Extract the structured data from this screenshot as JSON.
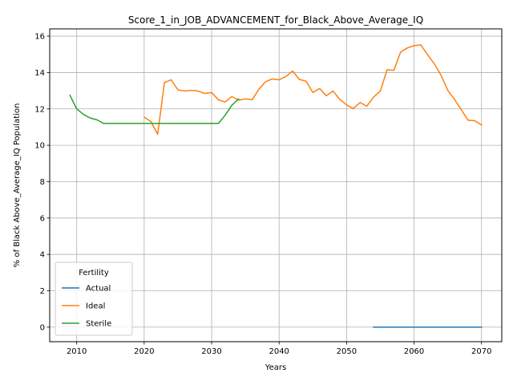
{
  "chart_data": {
    "type": "line",
    "title": "Score_1_in_JOB_ADVANCEMENT_for_Black_Above_Average_IQ",
    "xlabel": "Years",
    "ylabel": "% of Black Above_Average_IQ Population",
    "xlim": [
      2006,
      2073
    ],
    "ylim": [
      -0.8,
      16.4
    ],
    "xticks": [
      2010,
      2020,
      2030,
      2040,
      2050,
      2060,
      2070
    ],
    "yticks": [
      0,
      2,
      4,
      6,
      8,
      10,
      12,
      14,
      16
    ],
    "grid": true,
    "legend": {
      "title": "Fertility",
      "placement": "lower-left"
    },
    "series": [
      {
        "name": "Actual",
        "color": "#1f77b4",
        "points": [
          [
            2054,
            0.0
          ],
          [
            2056,
            0.0
          ],
          [
            2058,
            0.0
          ],
          [
            2060,
            0.0
          ],
          [
            2062,
            0.0
          ],
          [
            2064,
            0.0
          ],
          [
            2066,
            0.0
          ],
          [
            2068,
            0.0
          ],
          [
            2070,
            0.0
          ]
        ]
      },
      {
        "name": "Ideal",
        "color": "#ff7f0e",
        "points": [
          [
            2020,
            11.55
          ],
          [
            2021,
            11.3
          ],
          [
            2022,
            10.6
          ],
          [
            2023,
            13.45
          ],
          [
            2024,
            13.6
          ],
          [
            2025,
            13.05
          ],
          [
            2026,
            12.98
          ],
          [
            2027,
            13.02
          ],
          [
            2028,
            12.98
          ],
          [
            2029,
            12.85
          ],
          [
            2030,
            12.9
          ],
          [
            2031,
            12.5
          ],
          [
            2032,
            12.38
          ],
          [
            2033,
            12.68
          ],
          [
            2034,
            12.48
          ],
          [
            2035,
            12.55
          ],
          [
            2036,
            12.5
          ],
          [
            2037,
            13.08
          ],
          [
            2038,
            13.5
          ],
          [
            2039,
            13.65
          ],
          [
            2040,
            13.6
          ],
          [
            2041,
            13.78
          ],
          [
            2042,
            14.08
          ],
          [
            2043,
            13.62
          ],
          [
            2044,
            13.52
          ],
          [
            2045,
            12.9
          ],
          [
            2046,
            13.12
          ],
          [
            2047,
            12.72
          ],
          [
            2048,
            12.98
          ],
          [
            2049,
            12.52
          ],
          [
            2050,
            12.22
          ],
          [
            2051,
            12.02
          ],
          [
            2052,
            12.35
          ],
          [
            2053,
            12.15
          ],
          [
            2054,
            12.65
          ],
          [
            2055,
            12.98
          ],
          [
            2056,
            14.15
          ],
          [
            2057,
            14.12
          ],
          [
            2058,
            15.12
          ],
          [
            2059,
            15.35
          ],
          [
            2060,
            15.48
          ],
          [
            2061,
            15.52
          ],
          [
            2062,
            14.98
          ],
          [
            2063,
            14.48
          ],
          [
            2064,
            13.85
          ],
          [
            2065,
            13.02
          ],
          [
            2066,
            12.52
          ],
          [
            2067,
            11.95
          ],
          [
            2068,
            11.38
          ],
          [
            2069,
            11.35
          ],
          [
            2070,
            11.12
          ]
        ]
      },
      {
        "name": "Sterile",
        "color": "#2ca02c",
        "points": [
          [
            2009,
            12.75
          ],
          [
            2010,
            12.0
          ],
          [
            2011,
            11.7
          ],
          [
            2012,
            11.5
          ],
          [
            2013,
            11.4
          ],
          [
            2014,
            11.2
          ],
          [
            2015,
            11.2
          ],
          [
            2016,
            11.2
          ],
          [
            2017,
            11.2
          ],
          [
            2018,
            11.2
          ],
          [
            2019,
            11.2
          ],
          [
            2020,
            11.2
          ],
          [
            2021,
            11.2
          ],
          [
            2022,
            11.2
          ],
          [
            2023,
            11.2
          ],
          [
            2024,
            11.2
          ],
          [
            2025,
            11.2
          ],
          [
            2026,
            11.2
          ],
          [
            2027,
            11.2
          ],
          [
            2028,
            11.2
          ],
          [
            2029,
            11.2
          ],
          [
            2030,
            11.2
          ],
          [
            2031,
            11.2
          ],
          [
            2032,
            11.65
          ],
          [
            2033,
            12.2
          ],
          [
            2034,
            12.55
          ]
        ]
      }
    ]
  }
}
